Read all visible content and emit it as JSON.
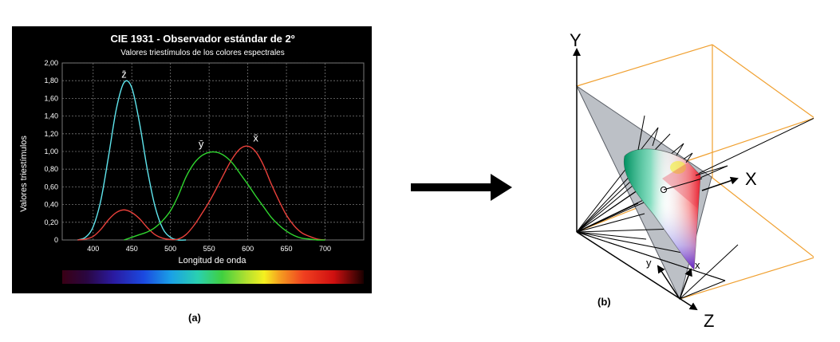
{
  "panel_a": {
    "caption": "(a)",
    "chart_data": {
      "type": "line",
      "title": "CIE 1931 - Observador estándar de 2º",
      "subtitle": "Valores triestímulos de los colores espectrales",
      "xlabel": "Longitud de onda",
      "ylabel": "Valores triestímulos",
      "xlim": [
        360,
        750
      ],
      "ylim": [
        0,
        2.0
      ],
      "x_ticks": [
        "400",
        "450",
        "500",
        "550",
        "600",
        "650",
        "700"
      ],
      "y_ticks": [
        "0",
        "0,20",
        "0,40",
        "0,60",
        "0,80",
        "1,00",
        "1,20",
        "1,40",
        "1,60",
        "1,80",
        "2,00"
      ],
      "grid": true,
      "series": [
        {
          "name": "z̄",
          "color": "#5fe6ee",
          "x": [
            380,
            390,
            400,
            410,
            420,
            430,
            440,
            450,
            460,
            470,
            480,
            490,
            500,
            510,
            520
          ],
          "y": [
            0.0,
            0.03,
            0.15,
            0.45,
            0.95,
            1.48,
            1.78,
            1.72,
            1.32,
            0.8,
            0.38,
            0.13,
            0.03,
            0.0,
            0.0
          ]
        },
        {
          "name": "x̄",
          "color": "#e8403a",
          "x": [
            380,
            390,
            400,
            410,
            420,
            430,
            440,
            450,
            460,
            470,
            480,
            490,
            500,
            510,
            520,
            530,
            540,
            550,
            560,
            570,
            580,
            590,
            600,
            610,
            620,
            630,
            640,
            650,
            660,
            670,
            680,
            690,
            700
          ],
          "y": [
            0.0,
            0.01,
            0.04,
            0.12,
            0.23,
            0.31,
            0.34,
            0.31,
            0.24,
            0.14,
            0.06,
            0.02,
            0.005,
            0.01,
            0.06,
            0.16,
            0.29,
            0.43,
            0.59,
            0.76,
            0.92,
            1.03,
            1.06,
            1.0,
            0.85,
            0.64,
            0.45,
            0.28,
            0.16,
            0.08,
            0.04,
            0.01,
            0.0
          ]
        },
        {
          "name": "ȳ",
          "color": "#30d62f",
          "x": [
            440,
            450,
            460,
            470,
            480,
            490,
            500,
            510,
            520,
            530,
            540,
            550,
            560,
            570,
            580,
            590,
            600,
            610,
            620,
            630,
            640,
            650,
            660,
            670,
            680,
            690,
            700
          ],
          "y": [
            0.0,
            0.03,
            0.06,
            0.09,
            0.14,
            0.22,
            0.33,
            0.5,
            0.71,
            0.86,
            0.95,
            0.99,
            0.99,
            0.95,
            0.87,
            0.75,
            0.63,
            0.5,
            0.38,
            0.26,
            0.17,
            0.1,
            0.05,
            0.02,
            0.01,
            0.0,
            0.0
          ]
        }
      ]
    }
  },
  "panel_b": {
    "caption": "(b)",
    "labels": {
      "axis_y": "Y",
      "axis_x": "X",
      "axis_z": "Z",
      "small_x": "x",
      "small_y": "y"
    }
  },
  "colors": {
    "background": "#000000",
    "grid": "#777777",
    "cube": "#f0a030",
    "plane": "#bcc0c6"
  }
}
